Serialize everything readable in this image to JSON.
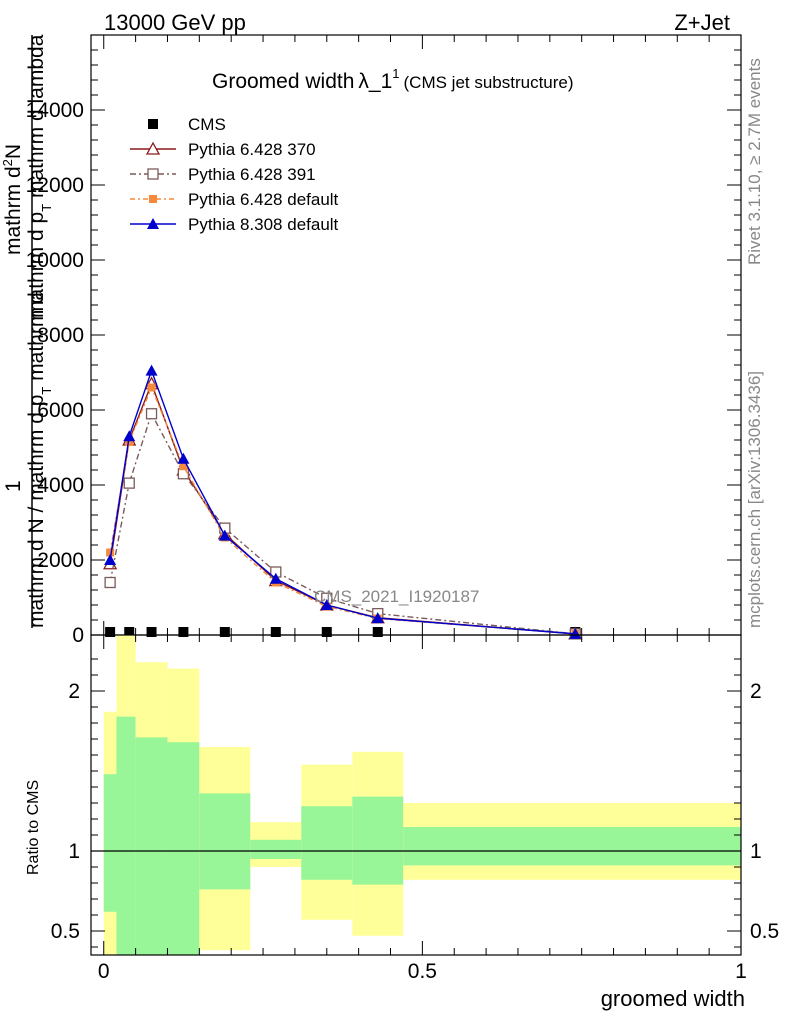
{
  "header": {
    "left": "13000 GeV pp",
    "right": "Z+Jet"
  },
  "side_text": {
    "rivet": "Rivet 3.1.10, ≥ 2.7M events",
    "mcplots": "mcplots.cern.ch [arXiv:1306.3436]"
  },
  "ylabel_main": {
    "numerator_pre": "1",
    "line1": "mathrm d",
    "line1_sup": "2",
    "line1_rest": "N",
    "line2_pre": "mathrm d p",
    "line2_sub": "T",
    "line2_rest": " mathrm d lambda",
    "denominator": "mathrm d N / mathrm d p",
    "denominator_sub": "T",
    "denominator_rest": "  mathrm d"
  },
  "colors": {
    "cms": "#000000",
    "py370": "#8b1a1a",
    "py391": "#7b5a5a",
    "py6def": "#f58a3c",
    "py8def": "#0000cc",
    "band_green": "#98f598",
    "band_yellow": "#ffff99"
  },
  "chart_data": [
    {
      "type": "line",
      "title": "Groomed width",
      "title_symbol": "λ_1",
      "title_sup": "1",
      "title_suffix": "(CMS jet substructure)",
      "xlabel": "",
      "ylabel": "",
      "xlim": [
        -0.02,
        1.0
      ],
      "ylim": [
        0,
        16000
      ],
      "yticks": [
        0,
        2000,
        4000,
        6000,
        8000,
        10000,
        12000,
        14000
      ],
      "ytick_labels": [
        "0",
        "2000",
        "4000",
        "6000",
        "8000",
        "10000",
        "12000",
        "14000"
      ],
      "watermark": "CMS_2021_I1920187",
      "legend_position": "top-left",
      "series": [
        {
          "name": "CMS",
          "x": [
            0.01,
            0.04,
            0.075,
            0.125,
            0.19,
            0.27,
            0.35,
            0.43,
            0.74
          ],
          "values": [
            0,
            0,
            0,
            0,
            0,
            0,
            0,
            0,
            0
          ],
          "marker": "square-filled",
          "color": "#000000"
        },
        {
          "name": "Pythia 6.428 370",
          "x": [
            0.01,
            0.04,
            0.075,
            0.125,
            0.19,
            0.27,
            0.35,
            0.43,
            0.74
          ],
          "values": [
            1900,
            5200,
            6700,
            4400,
            2700,
            1450,
            800,
            460,
            30
          ],
          "marker": "triangle-open",
          "color": "#8b1a1a"
        },
        {
          "name": "Pythia 6.428 391",
          "x": [
            0.01,
            0.04,
            0.075,
            0.125,
            0.19,
            0.27,
            0.35,
            0.43,
            0.74
          ],
          "values": [
            1400,
            4050,
            5900,
            4300,
            2850,
            1680,
            980,
            570,
            30
          ],
          "marker": "square-open",
          "color": "#7b5a5a"
        },
        {
          "name": "Pythia 6.428 default",
          "x": [
            0.01,
            0.04,
            0.075,
            0.125,
            0.19,
            0.27,
            0.35,
            0.43,
            0.74
          ],
          "values": [
            2200,
            5150,
            6600,
            4500,
            2600,
            1400,
            760,
            440,
            30
          ],
          "marker": "square-filled-small",
          "color": "#f58a3c"
        },
        {
          "name": "Pythia 8.308 default",
          "x": [
            0.01,
            0.04,
            0.075,
            0.125,
            0.19,
            0.27,
            0.35,
            0.43,
            0.74
          ],
          "values": [
            2000,
            5300,
            7050,
            4700,
            2650,
            1500,
            800,
            450,
            30
          ],
          "marker": "triangle-filled",
          "color": "#0000cc"
        }
      ]
    },
    {
      "type": "area",
      "xlabel": "groomed width",
      "ylabel": "Ratio to CMS",
      "xlim": [
        -0.02,
        1.0
      ],
      "ylim": [
        0.35,
        2.35
      ],
      "xticks": [
        0,
        0.5,
        1
      ],
      "xtick_labels": [
        "0",
        "0.5",
        "1"
      ],
      "yticks": [
        0.5,
        1,
        2
      ],
      "ytick_labels": [
        "0.5",
        "1",
        "2"
      ],
      "reference_line": 1,
      "bins": [
        {
          "x0": 0.0,
          "x1": 0.02,
          "green": [
            0.62,
            1.48
          ],
          "yellow": [
            0.35,
            1.87
          ]
        },
        {
          "x0": 0.02,
          "x1": 0.05,
          "green": [
            0.35,
            1.84
          ],
          "yellow": [
            0.35,
            2.35
          ]
        },
        {
          "x0": 0.05,
          "x1": 0.1,
          "green": [
            0.35,
            1.71
          ],
          "yellow": [
            0.35,
            2.18
          ]
        },
        {
          "x0": 0.1,
          "x1": 0.15,
          "green": [
            0.35,
            1.68
          ],
          "yellow": [
            0.35,
            2.14
          ]
        },
        {
          "x0": 0.15,
          "x1": 0.23,
          "green": [
            0.76,
            1.36
          ],
          "yellow": [
            0.38,
            1.65
          ]
        },
        {
          "x0": 0.23,
          "x1": 0.31,
          "green": [
            0.95,
            1.07
          ],
          "yellow": [
            0.9,
            1.18
          ]
        },
        {
          "x0": 0.31,
          "x1": 0.39,
          "green": [
            0.82,
            1.28
          ],
          "yellow": [
            0.57,
            1.54
          ]
        },
        {
          "x0": 0.39,
          "x1": 0.47,
          "green": [
            0.79,
            1.34
          ],
          "yellow": [
            0.47,
            1.62
          ]
        },
        {
          "x0": 0.47,
          "x1": 1.0,
          "green": [
            0.91,
            1.15
          ],
          "yellow": [
            0.82,
            1.3
          ]
        }
      ]
    }
  ]
}
